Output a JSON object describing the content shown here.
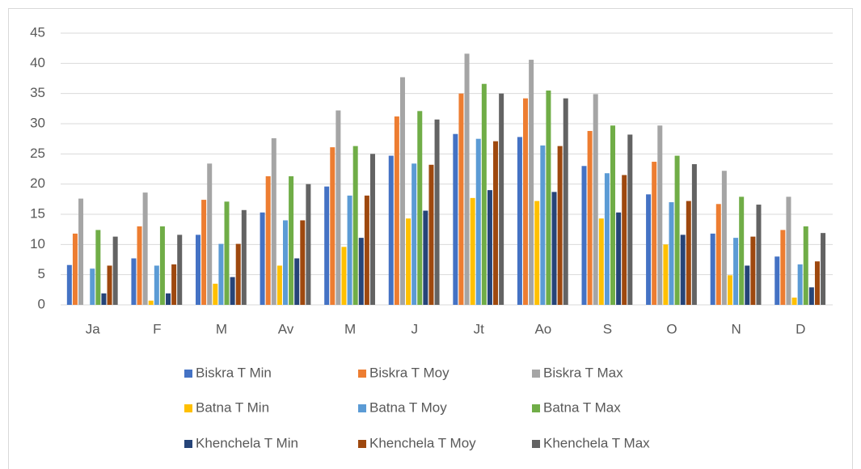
{
  "chart_data": {
    "type": "bar",
    "categories": [
      "Ja",
      "F",
      "M",
      "Av",
      "M",
      "J",
      "Jt",
      "Ao",
      "S",
      "O",
      "N",
      "D"
    ],
    "series": [
      {
        "name": "Biskra T Min",
        "color": "#4472c4",
        "values": [
          6.6,
          7.7,
          11.6,
          15.3,
          19.6,
          24.7,
          28.3,
          27.8,
          23,
          18.3,
          11.8,
          8
        ]
      },
      {
        "name": "Biskra T Moy",
        "color": "#ed7d31",
        "values": [
          11.8,
          13,
          17.4,
          21.3,
          26.1,
          31.2,
          35,
          34.2,
          28.8,
          23.7,
          16.7,
          12.4
        ]
      },
      {
        "name": "Biskra T Max",
        "color": "#a5a5a5",
        "values": [
          17.6,
          18.6,
          23.4,
          27.6,
          32.2,
          37.7,
          41.6,
          40.6,
          34.9,
          29.7,
          22.2,
          17.9
        ]
      },
      {
        "name": "Batna T Min",
        "color": "#ffc000",
        "values": [
          0,
          0.7,
          3.5,
          6.5,
          9.6,
          14.3,
          17.7,
          17.2,
          14.3,
          10,
          4.9,
          1.2
        ]
      },
      {
        "name": "Batna T Moy",
        "color": "#5b9bd5",
        "values": [
          6,
          6.5,
          10.1,
          14,
          18.1,
          23.4,
          27.5,
          26.4,
          21.8,
          17,
          11.1,
          6.7
        ]
      },
      {
        "name": "Batna T Max",
        "color": "#70ad47",
        "values": [
          12.4,
          13,
          17.1,
          21.3,
          26.3,
          32.1,
          36.6,
          35.5,
          29.7,
          24.7,
          17.9,
          13
        ]
      },
      {
        "name": "Khenchela T Min",
        "color": "#264478",
        "values": [
          1.9,
          1.9,
          4.6,
          7.7,
          11.1,
          15.6,
          19,
          18.7,
          15.3,
          11.6,
          6.5,
          2.9
        ]
      },
      {
        "name": "Khenchela T Moy",
        "color": "#9e480e",
        "values": [
          6.5,
          6.7,
          10.1,
          14,
          18.1,
          23.2,
          27.1,
          26.3,
          21.5,
          17.2,
          11.3,
          7.2
        ]
      },
      {
        "name": "Khenchela T Max",
        "color": "#636363",
        "values": [
          11.3,
          11.6,
          15.7,
          20,
          25,
          30.7,
          35,
          34.2,
          28.2,
          23.3,
          16.6,
          11.9
        ]
      }
    ],
    "ylim": [
      0,
      45
    ],
    "yticks": [
      0,
      5,
      10,
      15,
      20,
      25,
      30,
      35,
      40,
      45
    ],
    "grid": true,
    "legend": "bottom"
  }
}
